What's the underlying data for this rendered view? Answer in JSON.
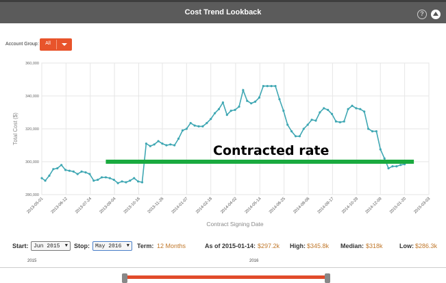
{
  "header": {
    "title": "Cost Trend Lookback"
  },
  "filters": {
    "account_group_label": "Account Group:",
    "account_group_value": "All"
  },
  "controls": {
    "start_label": "Start:",
    "start_value": "Jun 2015",
    "stop_label": "Stop:",
    "stop_value": "May 2016",
    "term_label": "Term:",
    "term_value": "12 Months",
    "asof_label": "As of 2015-01-14:",
    "asof_value": "$297.2k",
    "high_label": "High:",
    "high_value": "$345.8k",
    "median_label": "Median:",
    "median_value": "$318k",
    "low_label": "Low:",
    "low_value": "$286.3k"
  },
  "timeline": {
    "years": [
      "2015",
      "2016"
    ]
  },
  "chart_data": {
    "type": "line",
    "xlabel": "Contract Signing Date",
    "ylabel": "Total Cost ($)",
    "ylim": [
      280000,
      360000
    ],
    "y_ticks": [
      "280,000",
      "300,000",
      "320,000",
      "340,000",
      "360,000"
    ],
    "x_ticks": [
      "2013-05-01",
      "2013-06-12",
      "2013-07-24",
      "2013-09-04",
      "2013-10-16",
      "2013-11-26",
      "2014-01-07",
      "2014-02-18",
      "2014-04-02",
      "2014-05-14",
      "2014-06-25",
      "2014-08-06",
      "2014-09-17",
      "2014-10-29",
      "2014-12-09",
      "2015-01-20",
      "2015-03-03"
    ],
    "grid": true,
    "line_color": "#3fa7b3",
    "annotation": {
      "text": "Contracted rate",
      "value": 300000,
      "x_start": "2013-08-20",
      "x_end": "2015-02-05",
      "color": "#1aaa3f"
    },
    "series": [
      {
        "x": [
          "2013-05-01",
          "2013-05-07",
          "2013-05-14",
          "2013-05-21",
          "2013-05-28",
          "2013-06-04",
          "2013-06-11",
          "2013-06-18",
          "2013-06-25",
          "2013-07-02",
          "2013-07-09",
          "2013-07-16",
          "2013-07-23",
          "2013-07-30",
          "2013-08-06",
          "2013-08-13",
          "2013-08-20",
          "2013-08-27",
          "2013-09-03",
          "2013-09-10",
          "2013-09-17",
          "2013-09-24",
          "2013-10-01",
          "2013-10-08",
          "2013-10-15",
          "2013-10-22",
          "2013-10-29",
          "2013-11-05",
          "2013-11-12",
          "2013-11-19",
          "2013-11-26",
          "2013-12-03",
          "2013-12-10",
          "2013-12-17",
          "2013-12-24",
          "2013-12-31",
          "2014-01-07",
          "2014-01-14",
          "2014-01-21",
          "2014-01-28",
          "2014-02-04",
          "2014-02-11",
          "2014-02-18",
          "2014-02-25",
          "2014-03-04",
          "2014-03-11",
          "2014-03-18",
          "2014-03-25",
          "2014-04-01",
          "2014-04-08",
          "2014-04-15",
          "2014-04-22",
          "2014-04-29",
          "2014-05-06",
          "2014-05-13",
          "2014-05-20",
          "2014-05-27",
          "2014-06-03",
          "2014-06-10",
          "2014-06-17",
          "2014-06-24",
          "2014-07-01",
          "2014-07-08",
          "2014-07-15",
          "2014-07-22",
          "2014-07-29",
          "2014-08-05",
          "2014-08-12",
          "2014-08-19",
          "2014-08-26",
          "2014-09-02",
          "2014-09-09",
          "2014-09-16",
          "2014-09-23",
          "2014-09-30",
          "2014-10-07",
          "2014-10-14",
          "2014-10-21",
          "2014-10-28",
          "2014-11-04",
          "2014-11-11",
          "2014-11-18",
          "2014-11-25",
          "2014-12-02",
          "2014-12-09",
          "2014-12-16",
          "2014-12-23",
          "2014-12-30",
          "2015-01-06",
          "2015-01-13",
          "2015-01-20"
        ],
        "y": [
          290000,
          288500,
          291500,
          295500,
          296000,
          298000,
          295000,
          294500,
          294000,
          292500,
          294000,
          293500,
          292500,
          288500,
          289000,
          290500,
          290500,
          290000,
          289000,
          287000,
          288000,
          287500,
          288500,
          290000,
          288000,
          287500,
          311000,
          309500,
          310500,
          312500,
          311000,
          310000,
          310500,
          310000,
          314000,
          319000,
          320000,
          323500,
          322000,
          321500,
          321500,
          323500,
          326000,
          329500,
          332000,
          336000,
          328500,
          331000,
          331500,
          333500,
          343500,
          337000,
          335500,
          336500,
          339000,
          346000,
          346000,
          346000,
          346000,
          338000,
          331000,
          322500,
          318500,
          315500,
          315500,
          320000,
          322500,
          325500,
          325000,
          330000,
          332500,
          331500,
          329000,
          324500,
          324000,
          324500,
          332000,
          334000,
          332500,
          332000,
          330500,
          320000,
          318500,
          318500,
          307500,
          302000,
          296000,
          297200,
          297200,
          298000,
          298500
        ]
      }
    ]
  }
}
